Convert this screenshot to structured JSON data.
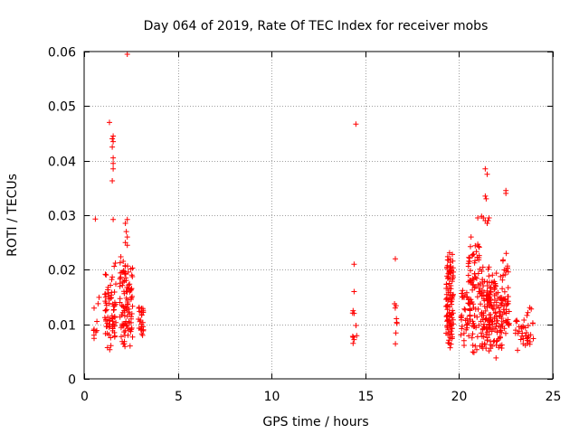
{
  "chart_data": {
    "type": "scatter",
    "title": "Day 064 of 2019, Rate Of TEC Index for receiver mobs",
    "xlabel": "GPS time / hours",
    "ylabel": "ROTI / TECUs",
    "xlim": [
      0,
      25
    ],
    "ylim": [
      0,
      0.06
    ],
    "xticks": [
      0,
      5,
      10,
      15,
      20,
      25
    ],
    "xtick_labels": [
      "0",
      "5",
      "10",
      "15",
      "20",
      "25"
    ],
    "yticks": [
      0,
      0.01,
      0.02,
      0.03,
      0.04,
      0.05,
      0.06
    ],
    "ytick_labels": [
      "0",
      "0.01",
      "0.02",
      "0.03",
      "0.04",
      "0.05",
      "0.06"
    ],
    "grid": true,
    "marker": "+",
    "color": "#ff0000",
    "series": [
      {
        "name": "ROTI",
        "clusters": [
          {
            "x_min": 0.5,
            "x_max": 0.8,
            "y_min": 0.006,
            "y_max": 0.017,
            "count": 10
          },
          {
            "x_min": 1.1,
            "x_max": 1.7,
            "y_min": 0.004,
            "y_max": 0.022,
            "count": 70
          },
          {
            "x_min": 1.9,
            "x_max": 2.6,
            "y_min": 0.005,
            "y_max": 0.023,
            "count": 100
          },
          {
            "x_min": 2.9,
            "x_max": 3.2,
            "y_min": 0.006,
            "y_max": 0.015,
            "count": 25
          },
          {
            "x_min": 14.3,
            "x_max": 14.6,
            "y_min": 0.006,
            "y_max": 0.013,
            "count": 5
          },
          {
            "x_min": 16.5,
            "x_max": 16.7,
            "y_min": 0.006,
            "y_max": 0.015,
            "count": 8
          },
          {
            "x_min": 19.3,
            "x_max": 19.7,
            "y_min": 0.004,
            "y_max": 0.026,
            "count": 110
          },
          {
            "x_min": 20.1,
            "x_max": 20.6,
            "y_min": 0.006,
            "y_max": 0.018,
            "count": 40
          },
          {
            "x_min": 20.5,
            "x_max": 21.1,
            "y_min": 0.004,
            "y_max": 0.027,
            "count": 70
          },
          {
            "x_min": 21.1,
            "x_max": 21.7,
            "y_min": 0.004,
            "y_max": 0.022,
            "count": 90
          },
          {
            "x_min": 21.6,
            "x_max": 22.3,
            "y_min": 0.003,
            "y_max": 0.02,
            "count": 90
          },
          {
            "x_min": 22.3,
            "x_max": 22.7,
            "y_min": 0.005,
            "y_max": 0.024,
            "count": 45
          },
          {
            "x_min": 23.0,
            "x_max": 24.0,
            "y_min": 0.005,
            "y_max": 0.014,
            "count": 40
          }
        ],
        "points": [
          [
            2.3,
            0.0595
          ],
          [
            1.35,
            0.047
          ],
          [
            14.5,
            0.0467
          ],
          [
            1.55,
            0.0445
          ],
          [
            1.5,
            0.044
          ],
          [
            1.55,
            0.0435
          ],
          [
            1.5,
            0.0425
          ],
          [
            1.55,
            0.0405
          ],
          [
            1.55,
            0.0395
          ],
          [
            1.55,
            0.0385
          ],
          [
            1.5,
            0.0363
          ],
          [
            0.6,
            0.0293
          ],
          [
            1.55,
            0.0292
          ],
          [
            2.3,
            0.0292
          ],
          [
            2.2,
            0.0285
          ],
          [
            2.25,
            0.027
          ],
          [
            2.3,
            0.026
          ],
          [
            2.2,
            0.025
          ],
          [
            2.3,
            0.0245
          ],
          [
            14.4,
            0.021
          ],
          [
            14.4,
            0.016
          ],
          [
            14.35,
            0.0125
          ],
          [
            14.4,
            0.012
          ],
          [
            14.4,
            0.0072
          ],
          [
            14.35,
            0.0065
          ],
          [
            16.6,
            0.022
          ],
          [
            21.4,
            0.0385
          ],
          [
            21.5,
            0.0375
          ],
          [
            21.4,
            0.0335
          ],
          [
            21.45,
            0.033
          ],
          [
            22.5,
            0.0345
          ],
          [
            22.5,
            0.034
          ],
          [
            21.2,
            0.0298
          ],
          [
            21.3,
            0.0295
          ],
          [
            21.0,
            0.0295
          ],
          [
            21.4,
            0.029
          ],
          [
            21.55,
            0.029
          ],
          [
            21.5,
            0.0285
          ],
          [
            21.6,
            0.0295
          ]
        ]
      }
    ]
  }
}
